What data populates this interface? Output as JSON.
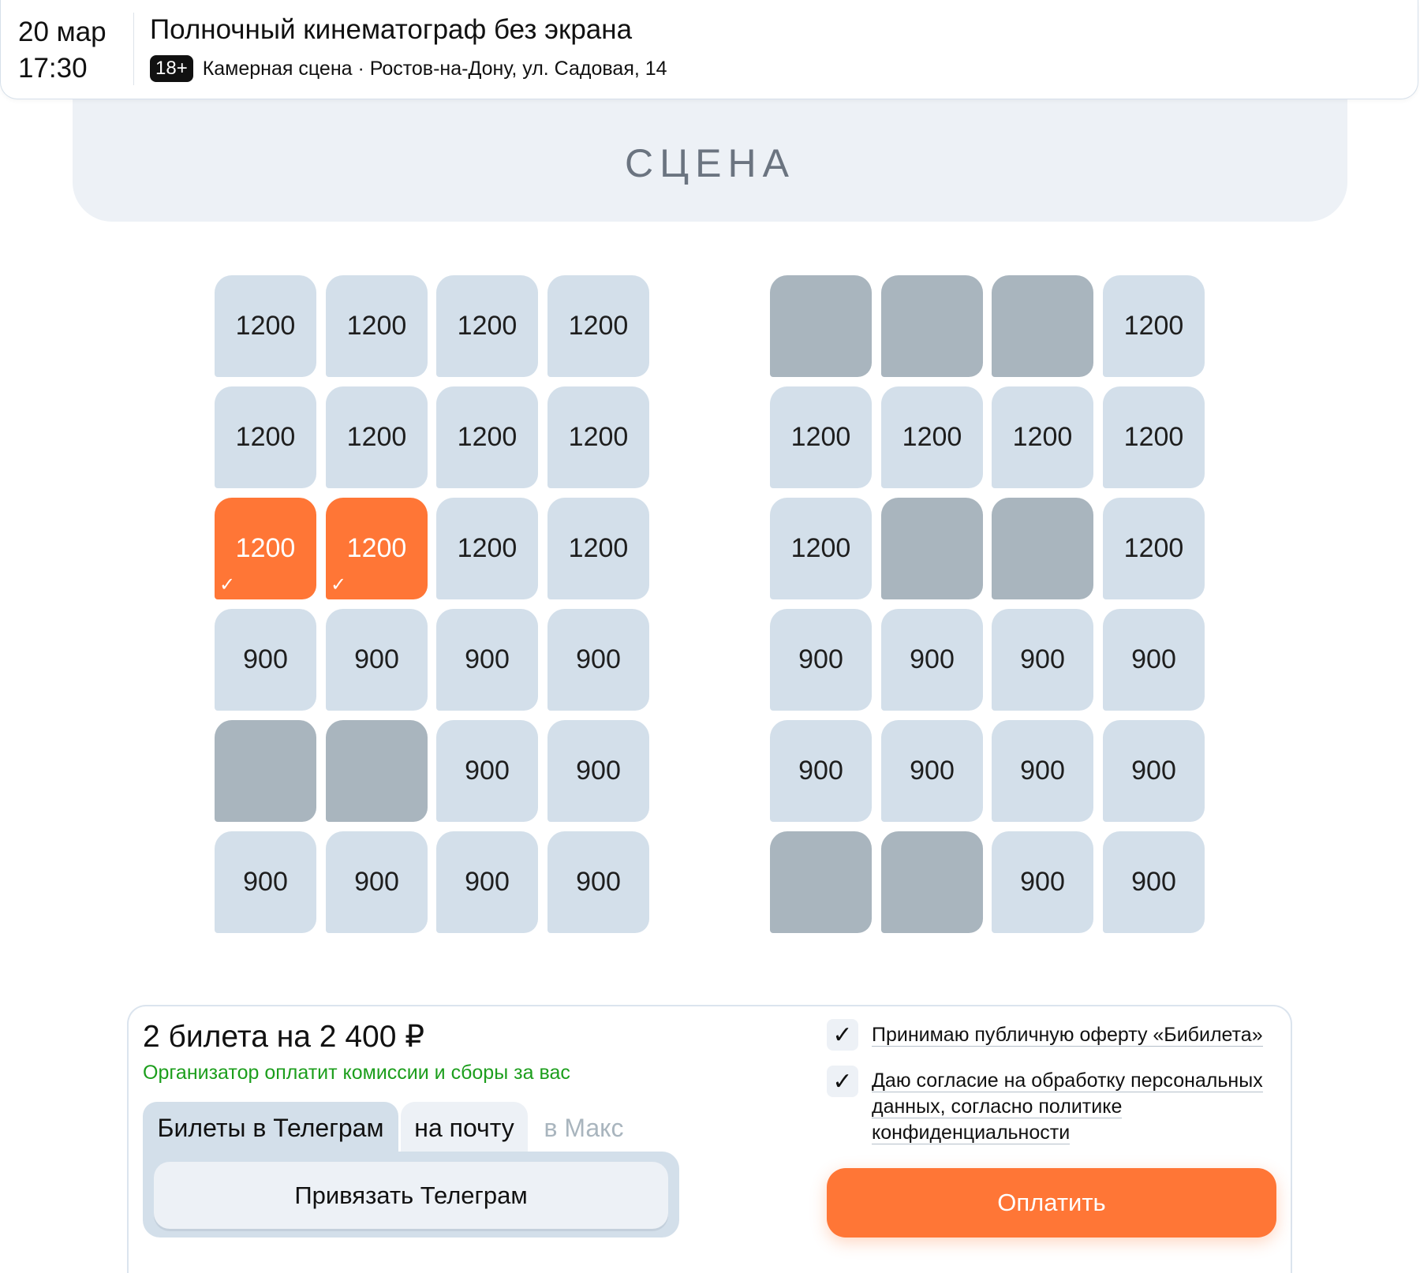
{
  "header": {
    "date": "20 мар",
    "time": "17:30",
    "title": "Полночный кинематограф без экрана",
    "age": "18+",
    "venue": "Камерная сцена · Ростов-на-Дону, ул. Садовая, 14"
  },
  "stage": "СЦЕНА",
  "seats": {
    "left": [
      [
        "1200",
        "1200",
        "1200",
        "1200"
      ],
      [
        "1200",
        "1200",
        "1200",
        "1200"
      ],
      [
        "1200*",
        "1200*",
        "1200",
        "1200"
      ],
      [
        "900",
        "900",
        "900",
        "900"
      ],
      [
        "x",
        "x",
        "900",
        "900"
      ],
      [
        "900",
        "900",
        "900",
        "900"
      ]
    ],
    "right": [
      [
        "x",
        "x",
        "x",
        "1200"
      ],
      [
        "1200",
        "1200",
        "1200",
        "1200"
      ],
      [
        "1200",
        "x",
        "x",
        "1200"
      ],
      [
        "900",
        "900",
        "900",
        "900"
      ],
      [
        "900",
        "900",
        "900",
        "900"
      ],
      [
        "x",
        "x",
        "900",
        "900"
      ]
    ],
    "legend": "x = occupied, * = selected"
  },
  "colors": {
    "free": "#d3dfea",
    "taken": "#a9b5be",
    "selected": "#ff7636",
    "accent": "#ff7636",
    "green": "#1c9e1c"
  },
  "order": {
    "total": "2 билета на 2 400 ₽",
    "note": "Организатор оплатит комиссии и сборы за вас",
    "tabs": [
      "Билеты в Телеграм",
      "на почту",
      "в Макс"
    ],
    "bind_button": "Привязать Телеграм",
    "consents": [
      {
        "checked": true,
        "label": "Принимаю публичную оферту «Бибилета»"
      },
      {
        "checked": true,
        "label": "Даю согласие на обработку персональных данных, согласно политике конфиденциальности"
      }
    ],
    "pay": "Оплатить"
  }
}
